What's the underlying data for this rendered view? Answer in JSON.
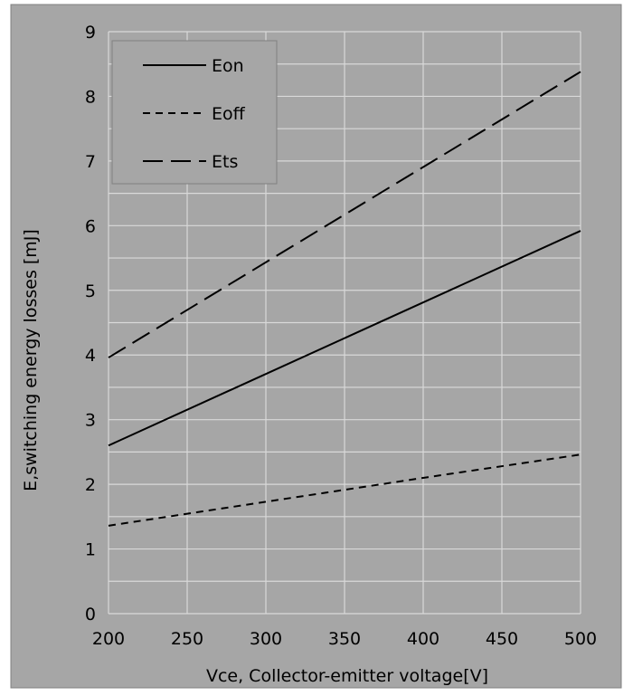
{
  "chart_data": {
    "type": "line",
    "title": "",
    "xlabel": "Vce, Collector-emitter voltage[V]",
    "ylabel": "E,switching energy losses [mJ]",
    "xlim": [
      200,
      500
    ],
    "ylim": [
      0,
      9
    ],
    "xticks": [
      200,
      250,
      300,
      350,
      400,
      450,
      500
    ],
    "yticks": [
      0,
      1,
      2,
      3,
      4,
      5,
      6,
      7,
      8,
      9
    ],
    "grid": true,
    "legend_position": "top-left",
    "colors": {
      "background": "#a6a6a6",
      "plot_area": "#a6a6a6",
      "gridline": "#d9d9d9",
      "series": "#000000",
      "border": "#808080"
    },
    "series": [
      {
        "name": "Eon",
        "style": "solid",
        "x": [
          200,
          500
        ],
        "y": [
          2.6,
          5.92
        ]
      },
      {
        "name": "Eoff",
        "style": "dotted",
        "x": [
          200,
          300,
          400,
          500
        ],
        "y": [
          1.36,
          1.73,
          2.1,
          2.46
        ]
      },
      {
        "name": "Ets",
        "style": "dashed",
        "x": [
          200,
          500
        ],
        "y": [
          3.96,
          8.38
        ]
      }
    ]
  }
}
